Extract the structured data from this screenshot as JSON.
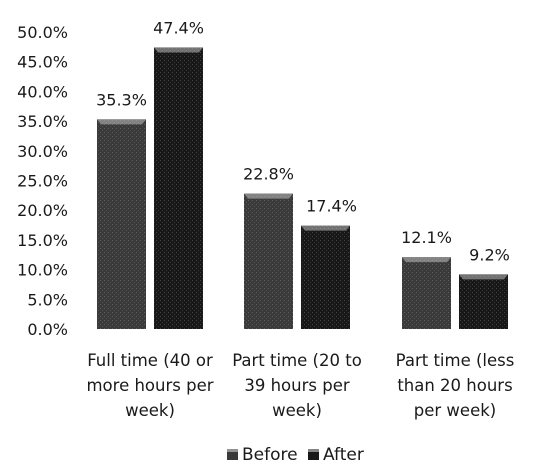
{
  "chart_data": {
    "type": "bar",
    "categories": [
      [
        "Full time (40 or",
        "more hours per",
        "week)"
      ],
      [
        "Part time (20 to",
        "39 hours per",
        "week)"
      ],
      [
        "Part time (less",
        "than 20 hours",
        "per week)"
      ]
    ],
    "series": [
      {
        "name": "Before",
        "values": [
          35.3,
          22.8,
          12.1
        ],
        "labels": [
          "35.3%",
          "22.8%",
          "12.1%"
        ],
        "color": "#3a3a3a"
      },
      {
        "name": "After",
        "values": [
          47.4,
          17.4,
          9.2
        ],
        "labels": [
          "47.4%",
          "17.4%",
          "9.2%"
        ],
        "color": "#181818"
      }
    ],
    "y_ticks": [
      "0.0%",
      "5.0%",
      "10.0%",
      "15.0%",
      "20.0%",
      "25.0%",
      "30.0%",
      "35.0%",
      "40.0%",
      "45.0%",
      "50.0%"
    ],
    "ylim": [
      0,
      50
    ],
    "grid": false,
    "legend_position": "bottom"
  }
}
